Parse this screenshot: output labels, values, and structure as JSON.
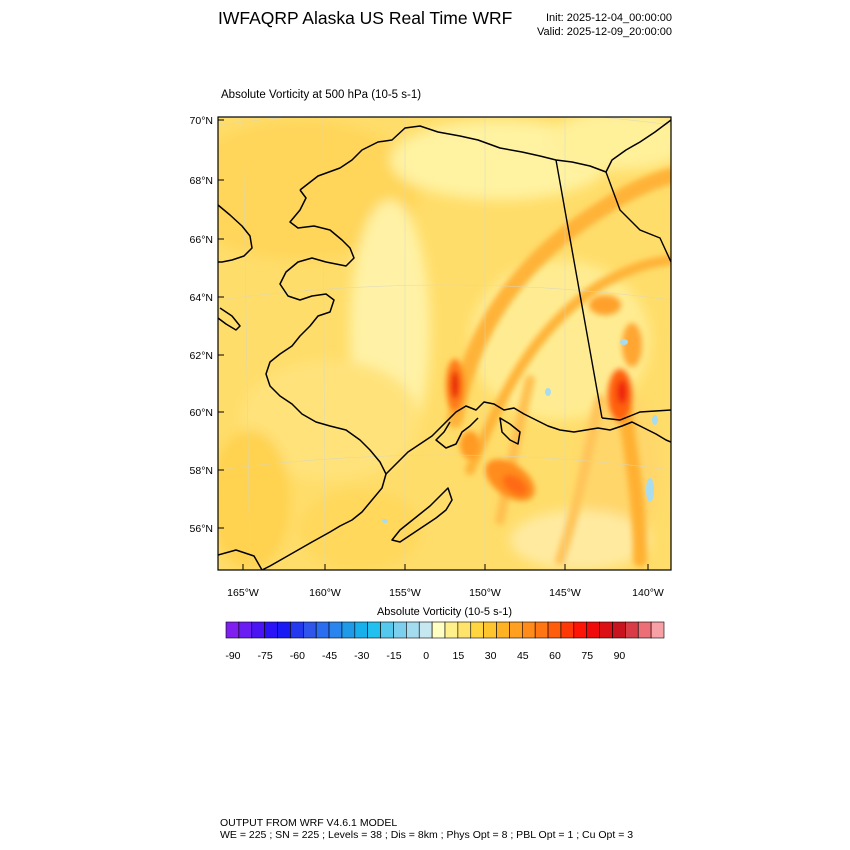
{
  "title": "IWFAQRP Alaska US Real Time WRF",
  "init_label": "Init: 2025-12-04_00:00:00",
  "valid_label": "Valid: 2025-12-09_20:00:00",
  "plot_subtitle": "Absolute Vorticity at 500 hPa   (10-5 s-1)",
  "colorbar": {
    "title": "Absolute Vorticity  (10-5 s-1)",
    "tick_labels": [
      "-90",
      "-75",
      "-60",
      "-45",
      "-30",
      "-15",
      "0",
      "15",
      "30",
      "45",
      "60",
      "75",
      "90"
    ],
    "colors": [
      "#7f1ff0",
      "#6a1ef2",
      "#4a14f5",
      "#2a14f7",
      "#1a1af5",
      "#2338ef",
      "#2f55ea",
      "#2a6df0",
      "#2a86ee",
      "#1f9ae8",
      "#18b0ec",
      "#22c0ef",
      "#55c8ee",
      "#7cd0ee",
      "#a3dcef",
      "#c6e6f0",
      "#ffffc4",
      "#fff08c",
      "#ffe36a",
      "#ffd640",
      "#ffc52e",
      "#ffb224",
      "#ffa020",
      "#ff8c1a",
      "#ff7612",
      "#ff5c0c",
      "#ff3808",
      "#ff1506",
      "#f00a0a",
      "#dc0f14",
      "#c8141e",
      "#d83c46",
      "#ec6e76",
      "#f7a0a6"
    ]
  },
  "axes": {
    "lat_labels": [
      "70°N",
      "68°N",
      "66°N",
      "64°N",
      "62°N",
      "60°N",
      "58°N",
      "56°N"
    ],
    "lon_labels": [
      "165°W",
      "160°W",
      "155°W",
      "150°W",
      "145°W",
      "140°W"
    ]
  },
  "footer": {
    "line1": "OUTPUT FROM WRF V4.6.1 MODEL",
    "line2": "WE = 225 ; SN = 225 ; Levels = 38 ; Dis = 8km ; Phys Opt = 8 ; PBL Opt = 1 ; Cu Opt = 3"
  },
  "colors": {
    "background_field": "#ffdd66",
    "coastline": "#000000"
  }
}
